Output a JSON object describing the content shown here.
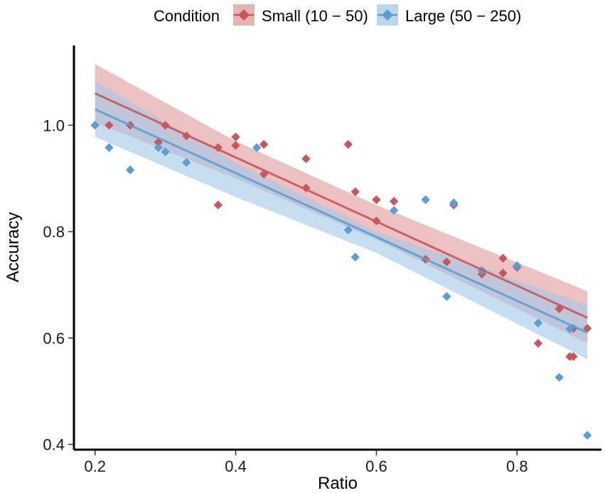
{
  "chart_data": {
    "type": "scatter",
    "title": "",
    "xlabel": "Ratio",
    "ylabel": "Accuracy",
    "xlim": [
      0.17,
      0.92
    ],
    "ylim": [
      0.39,
      1.15
    ],
    "xticks": [
      0.2,
      0.4,
      0.6,
      0.8
    ],
    "xtick_labels": [
      "0.2",
      "0.4",
      "0.6",
      "0.8"
    ],
    "yticks": [
      0.4,
      0.6,
      0.8,
      1.0
    ],
    "ytick_labels": [
      "0.4",
      "0.6",
      "0.8",
      "1.0"
    ],
    "grid": false,
    "legend": {
      "title": "Condition",
      "position": "top",
      "entries": [
        "Small (10 − 50)",
        "Large (50 − 250)"
      ]
    },
    "series": [
      {
        "name": "Small (10 − 50)",
        "color": "#c9575a",
        "band_color": "#e09b9d",
        "points": [
          [
            0.22,
            1.0
          ],
          [
            0.25,
            1.0
          ],
          [
            0.29,
            0.968
          ],
          [
            0.3,
            1.0
          ],
          [
            0.33,
            0.98
          ],
          [
            0.375,
            0.85
          ],
          [
            0.375,
            0.958
          ],
          [
            0.4,
            0.978
          ],
          [
            0.4,
            0.962
          ],
          [
            0.44,
            0.964
          ],
          [
            0.44,
            0.908
          ],
          [
            0.5,
            0.937
          ],
          [
            0.5,
            0.882
          ],
          [
            0.56,
            0.964
          ],
          [
            0.57,
            0.875
          ],
          [
            0.6,
            0.86
          ],
          [
            0.6,
            0.82
          ],
          [
            0.625,
            0.857
          ],
          [
            0.67,
            0.748
          ],
          [
            0.7,
            0.743
          ],
          [
            0.71,
            0.85
          ],
          [
            0.75,
            0.72
          ],
          [
            0.78,
            0.75
          ],
          [
            0.78,
            0.722
          ],
          [
            0.8,
            0.733
          ],
          [
            0.83,
            0.59
          ],
          [
            0.86,
            0.655
          ],
          [
            0.875,
            0.565
          ],
          [
            0.88,
            0.565
          ],
          [
            0.88,
            0.618
          ],
          [
            0.9,
            0.618
          ]
        ],
        "fit": {
          "x": [
            0.2,
            0.9
          ],
          "y": [
            1.06,
            0.638
          ]
        },
        "ci_lower": {
          "x": [
            0.2,
            0.4,
            0.6,
            0.9
          ],
          "y": [
            1.005,
            0.9,
            0.785,
            0.59
          ]
        },
        "ci_upper": {
          "x": [
            0.2,
            0.4,
            0.6,
            0.9
          ],
          "y": [
            1.115,
            0.97,
            0.85,
            0.688
          ]
        }
      },
      {
        "name": "Large (50 − 250)",
        "color": "#5a9fd4",
        "band_color": "#a4c9e6",
        "points": [
          [
            0.2,
            1.0
          ],
          [
            0.22,
            0.958
          ],
          [
            0.25,
            0.916
          ],
          [
            0.29,
            0.958
          ],
          [
            0.3,
            0.95
          ],
          [
            0.33,
            0.93
          ],
          [
            0.43,
            0.958
          ],
          [
            0.56,
            0.803
          ],
          [
            0.57,
            0.752
          ],
          [
            0.625,
            0.84
          ],
          [
            0.67,
            0.86
          ],
          [
            0.7,
            0.678
          ],
          [
            0.71,
            0.854
          ],
          [
            0.75,
            0.727
          ],
          [
            0.8,
            0.736
          ],
          [
            0.83,
            0.628
          ],
          [
            0.86,
            0.526
          ],
          [
            0.875,
            0.617
          ],
          [
            0.9,
            0.417
          ]
        ],
        "fit": {
          "x": [
            0.2,
            0.9
          ],
          "y": [
            1.03,
            0.61
          ]
        },
        "ci_lower": {
          "x": [
            0.2,
            0.4,
            0.6,
            0.9
          ],
          "y": [
            0.978,
            0.865,
            0.76,
            0.56
          ]
        },
        "ci_upper": {
          "x": [
            0.2,
            0.4,
            0.6,
            0.9
          ],
          "y": [
            1.083,
            0.93,
            0.8,
            0.662
          ]
        }
      }
    ]
  }
}
